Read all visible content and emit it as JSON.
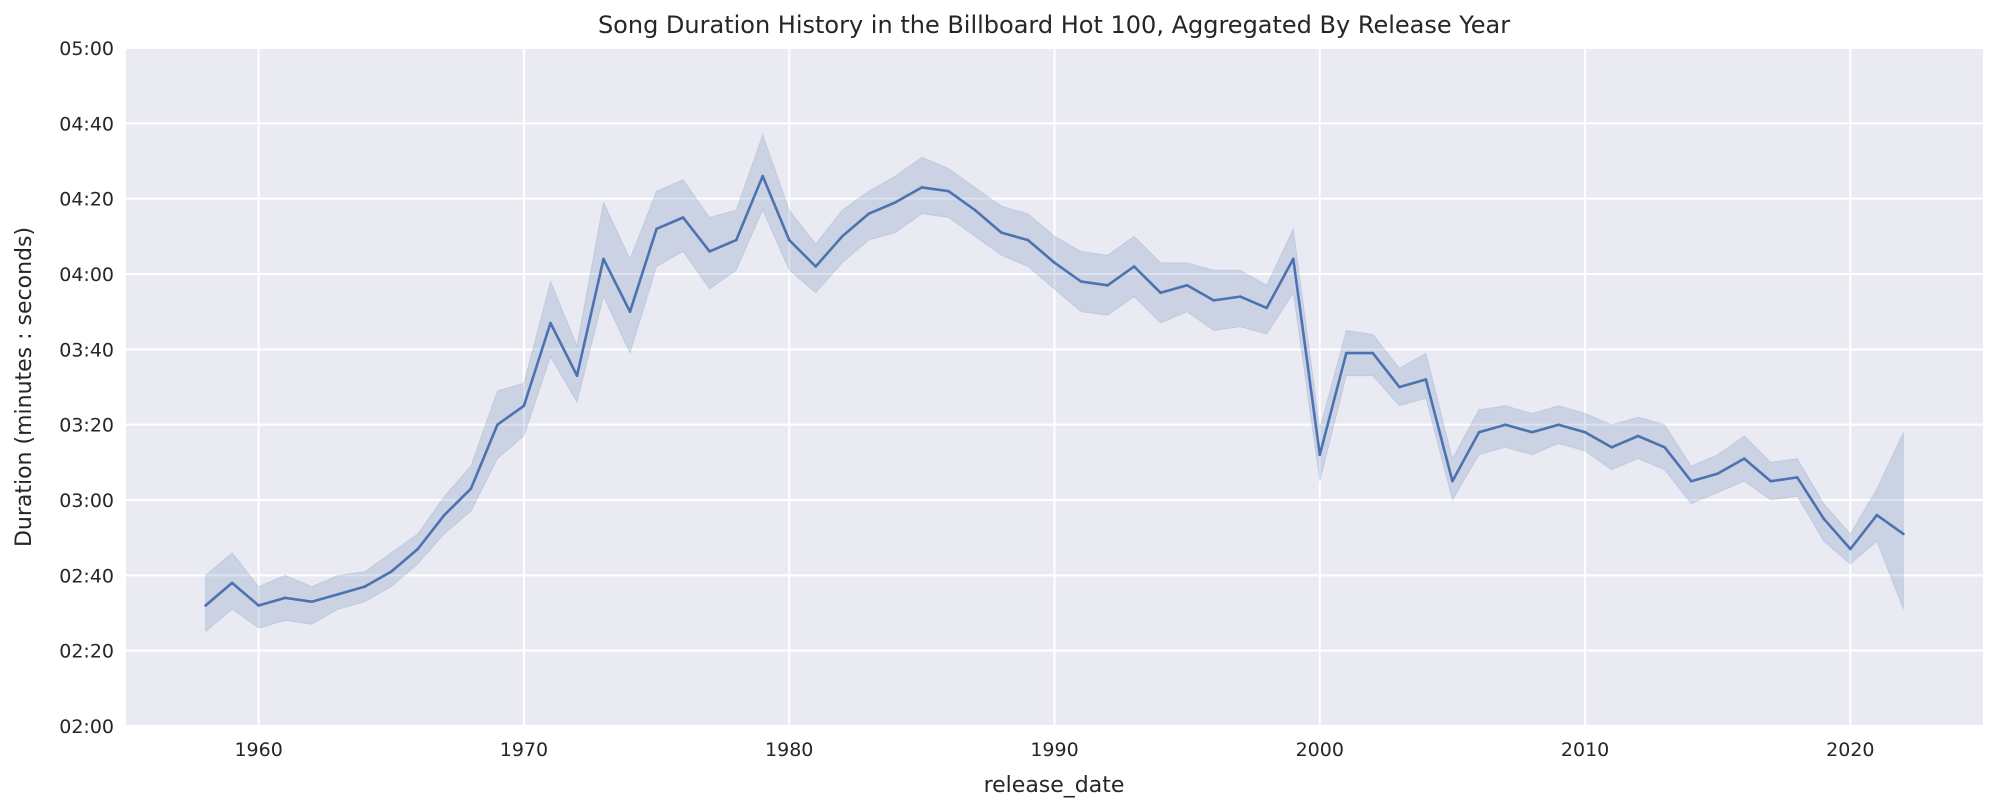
{
  "chart_data": {
    "type": "line",
    "title": "Song Duration History in the Billboard Hot 100, Aggregated By Release Year",
    "xlabel": "release_date",
    "ylabel": "Duration (minutes : seconds)",
    "xlim": [
      1955,
      2025
    ],
    "ylim": [
      120,
      300
    ],
    "x_ticks": [
      1960,
      1970,
      1980,
      1990,
      2000,
      2010,
      2020
    ],
    "x_tick_labels": [
      "1960",
      "1970",
      "1980",
      "1990",
      "2000",
      "2010",
      "2020"
    ],
    "y_ticks": [
      120,
      140,
      160,
      180,
      200,
      220,
      240,
      260,
      280,
      300
    ],
    "y_tick_labels": [
      "02:00",
      "02:20",
      "02:40",
      "03:00",
      "03:20",
      "03:40",
      "04:00",
      "04:20",
      "04:40",
      "05:00"
    ],
    "y_unit": "seconds",
    "grid": true,
    "background_color": "#eaeaf2",
    "line_color": "#4c72b0",
    "series": [
      {
        "x": [
          1958,
          1959,
          1960,
          1961,
          1962,
          1963,
          1964,
          1965,
          1966,
          1967,
          1968,
          1969,
          1970,
          1971,
          1972,
          1973,
          1974,
          1975,
          1976,
          1977,
          1978,
          1979,
          1980,
          1981,
          1982,
          1983,
          1984,
          1985,
          1986,
          1987,
          1988,
          1989,
          1990,
          1991,
          1992,
          1993,
          1994,
          1995,
          1996,
          1997,
          1998,
          1999,
          2000,
          2001,
          2002,
          2003,
          2004,
          2005,
          2006,
          2007,
          2008,
          2009,
          2010,
          2011,
          2012,
          2013,
          2014,
          2015,
          2016,
          2017,
          2018,
          2019,
          2020,
          2021,
          2022
        ],
        "y": [
          152,
          158,
          152,
          154,
          153,
          155,
          157,
          161,
          167,
          176,
          183,
          200,
          205,
          227,
          213,
          244,
          230,
          252,
          255,
          246,
          249,
          266,
          249,
          242,
          250,
          256,
          259,
          263,
          262,
          257,
          251,
          249,
          243,
          238,
          237,
          242,
          235,
          237,
          233,
          234,
          231,
          244,
          192,
          219,
          219,
          210,
          212,
          185,
          198,
          200,
          198,
          200,
          198,
          194,
          197,
          194,
          185,
          187,
          191,
          185,
          186,
          175,
          167,
          176,
          171
        ],
        "ci_lower": [
          145,
          151,
          146,
          148,
          147,
          151,
          153,
          157,
          163,
          171,
          177,
          191,
          197,
          218,
          206,
          234,
          219,
          242,
          246,
          236,
          241,
          257,
          241,
          235,
          243,
          249,
          251,
          256,
          255,
          250,
          245,
          242,
          236,
          230,
          229,
          234,
          227,
          230,
          225,
          226,
          224,
          235,
          185,
          213,
          213,
          205,
          207,
          180,
          192,
          194,
          192,
          195,
          193,
          188,
          191,
          188,
          179,
          182,
          185,
          180,
          181,
          169,
          163,
          169,
          151
        ],
        "ci_upper": [
          160,
          166,
          157,
          160,
          157,
          160,
          161,
          166,
          171,
          181,
          189,
          209,
          211,
          238,
          221,
          259,
          244,
          262,
          265,
          255,
          257,
          277,
          257,
          248,
          257,
          262,
          266,
          271,
          268,
          263,
          258,
          256,
          250,
          246,
          245,
          250,
          243,
          243,
          241,
          241,
          237,
          252,
          199,
          225,
          224,
          215,
          219,
          191,
          204,
          205,
          203,
          205,
          203,
          200,
          202,
          200,
          189,
          192,
          197,
          190,
          191,
          179,
          171,
          183,
          198
        ]
      }
    ]
  }
}
